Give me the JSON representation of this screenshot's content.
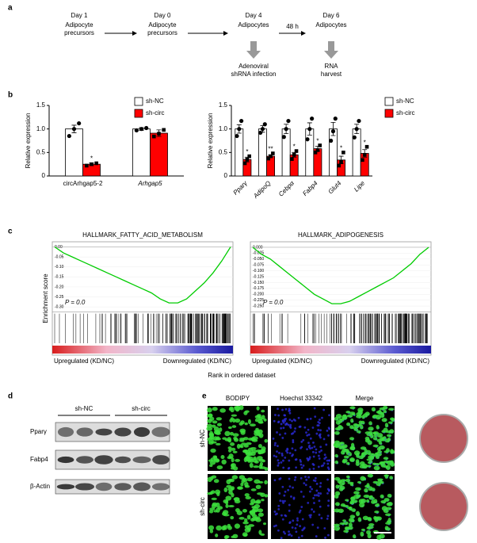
{
  "panel_labels": [
    "a",
    "b",
    "c",
    "d",
    "e"
  ],
  "workflow": {
    "steps": [
      {
        "day": "Day 1",
        "lines": [
          "Adipocyte",
          "precursors"
        ]
      },
      {
        "day": "Day 0",
        "lines": [
          "Adipocyte",
          "precursors"
        ]
      },
      {
        "day": "Day 4",
        "lines": [
          "Adipocytes"
        ]
      },
      {
        "day": "Day 6",
        "lines": [
          "Adipocytes"
        ]
      }
    ],
    "interval": "48 h",
    "actions": [
      {
        "lines": [
          "Adenoviral",
          "shRNA infection"
        ]
      },
      {
        "lines": [
          "RNA",
          "harvest"
        ]
      }
    ]
  },
  "chart_data": [
    {
      "type": "bar",
      "ylabel": "Relative expression",
      "categories": [
        "circArhgap5-2",
        "Arhgap5"
      ],
      "category_italic": [
        false,
        true
      ],
      "xtick_rotation": 0,
      "ylim": [
        0,
        1.5
      ],
      "yticks": [
        0,
        0.5,
        {
          "value": 1,
          "label": "1.0"
        },
        1.5
      ],
      "series": [
        {
          "name": "sh-NC",
          "color": "#ffffff",
          "marker": "circle",
          "values": [
            1.0,
            1.0
          ],
          "errors": [
            0.08,
            0.03
          ],
          "points": [
            [
              0.85,
              1.0,
              1.12
            ],
            [
              0.97,
              1.0,
              1.02
            ]
          ],
          "stars": [
            null,
            null
          ]
        },
        {
          "name": "sh-circ",
          "color": "#ff0000",
          "marker": "square",
          "values": [
            0.25,
            0.91
          ],
          "errors": [
            0.03,
            0.07
          ],
          "points": [
            [
              0.22,
              0.25,
              0.27
            ],
            [
              0.84,
              0.9,
              0.98
            ]
          ],
          "stars": [
            "*",
            null
          ]
        }
      ]
    },
    {
      "type": "bar",
      "ylabel": "Relative expression",
      "categories": [
        "Pparγ",
        "AdipoQ",
        "Cebpα",
        "Fabp4",
        "Glut4",
        "Lipe"
      ],
      "category_italic": [
        true,
        true,
        true,
        true,
        true,
        true
      ],
      "xtick_rotation": 45,
      "ylim": [
        0,
        1.5
      ],
      "yticks": [
        0,
        0.5,
        {
          "value": 1,
          "label": "1.0"
        },
        1.5
      ],
      "series": [
        {
          "name": "sh-NC",
          "color": "#ffffff",
          "marker": "circle",
          "values": [
            1,
            1,
            1,
            1,
            1,
            1
          ],
          "errors": [
            0.09,
            0.07,
            0.1,
            0.13,
            0.14,
            0.1
          ],
          "points": [
            [
              0.85,
              1.0,
              1.17
            ],
            [
              0.92,
              1.0,
              1.1
            ],
            [
              0.83,
              1.0,
              1.17
            ],
            [
              0.78,
              1.0,
              1.22
            ],
            [
              0.75,
              0.95,
              1.22
            ],
            [
              0.82,
              1.0,
              1.17
            ]
          ],
          "stars": [
            null,
            null,
            null,
            null,
            null,
            null
          ]
        },
        {
          "name": "sh-circ",
          "color": "#ff0000",
          "marker": "square",
          "values": [
            0.35,
            0.42,
            0.45,
            0.58,
            0.34,
            0.48
          ],
          "errors": [
            0.05,
            0.03,
            0.05,
            0.05,
            0.08,
            0.08
          ],
          "points": [
            [
              0.27,
              0.35,
              0.42
            ],
            [
              0.37,
              0.42,
              0.48
            ],
            [
              0.36,
              0.45,
              0.53
            ],
            [
              0.5,
              0.55,
              0.65
            ],
            [
              0.22,
              0.3,
              0.5
            ],
            [
              0.34,
              0.45,
              0.62
            ]
          ],
          "stars": [
            "*",
            "**",
            "*",
            "*",
            "*",
            "*"
          ]
        }
      ]
    },
    {
      "type": "line",
      "title": "HALLMARK_FATTY_ACID_METABOLISM",
      "ylabel": "Enrichment score",
      "xlabel": "Rank in ordered dataset",
      "annotation": "P = 0.0",
      "left_label": "Upregulated (KD/NC)",
      "right_label": "Downregulated (KD/NC)",
      "color": "#00cc00",
      "xlim": [
        0,
        100
      ],
      "ylim": [
        -0.31,
        0.01
      ],
      "yticks": [
        {
          "value": 0,
          "label": "0.00"
        },
        {
          "value": -0.05,
          "label": "-0.05"
        },
        {
          "value": -0.1,
          "label": "-0.10"
        },
        {
          "value": -0.15,
          "label": "-0.15"
        },
        {
          "value": -0.2,
          "label": "-0.20"
        },
        {
          "value": -0.25,
          "label": "-0.25"
        },
        {
          "value": -0.3,
          "label": "-0.30"
        }
      ],
      "x": [
        0,
        5,
        10,
        15,
        20,
        25,
        30,
        35,
        40,
        45,
        50,
        55,
        60,
        65,
        70,
        75,
        80,
        85,
        90,
        95,
        100
      ],
      "values": [
        0,
        -0.03,
        -0.05,
        -0.07,
        -0.09,
        -0.11,
        -0.13,
        -0.15,
        -0.17,
        -0.19,
        -0.21,
        -0.23,
        -0.26,
        -0.28,
        -0.28,
        -0.26,
        -0.22,
        -0.18,
        -0.13,
        -0.07,
        0
      ]
    },
    {
      "type": "line",
      "title": "HALLMARK_ADIPOGENESIS",
      "annotation": "P = 0.0",
      "left_label": "Upregulated (KD/NC)",
      "right_label": "Downregulated (KD/NC)",
      "color": "#00cc00",
      "xlim": [
        0,
        100
      ],
      "ylim": [
        -0.262,
        0.01
      ],
      "yticks": [
        {
          "value": 0,
          "label": "0.000"
        },
        {
          "value": -0.025,
          "label": "-0.025"
        },
        {
          "value": -0.05,
          "label": "-0.050"
        },
        {
          "value": -0.075,
          "label": "-0.075"
        },
        {
          "value": -0.1,
          "label": "-0.100"
        },
        {
          "value": -0.125,
          "label": "-0.125"
        },
        {
          "value": -0.15,
          "label": "-0.150"
        },
        {
          "value": -0.175,
          "label": "-0.175"
        },
        {
          "value": -0.2,
          "label": "-0.200"
        },
        {
          "value": -0.225,
          "label": "-0.225"
        },
        {
          "value": -0.25,
          "label": "-0.250"
        }
      ],
      "x": [
        0,
        5,
        10,
        15,
        20,
        25,
        30,
        35,
        40,
        45,
        50,
        55,
        60,
        65,
        70,
        75,
        80,
        85,
        90,
        95,
        100
      ],
      "values": [
        0,
        -0.03,
        -0.05,
        -0.08,
        -0.11,
        -0.14,
        -0.17,
        -0.2,
        -0.22,
        -0.24,
        -0.24,
        -0.23,
        -0.21,
        -0.19,
        -0.17,
        -0.15,
        -0.13,
        -0.1,
        -0.07,
        -0.03,
        0
      ]
    }
  ],
  "blot": {
    "groups": [
      "sh-NC",
      "sh-circ"
    ],
    "rows": [
      "Pparγ",
      "Fabp4",
      "β-Actin"
    ]
  },
  "imaging": {
    "columns": [
      "BODIPY",
      "Hoechst 33342",
      "Merge"
    ],
    "rows": [
      "sh-NC",
      "sh-circ"
    ]
  }
}
